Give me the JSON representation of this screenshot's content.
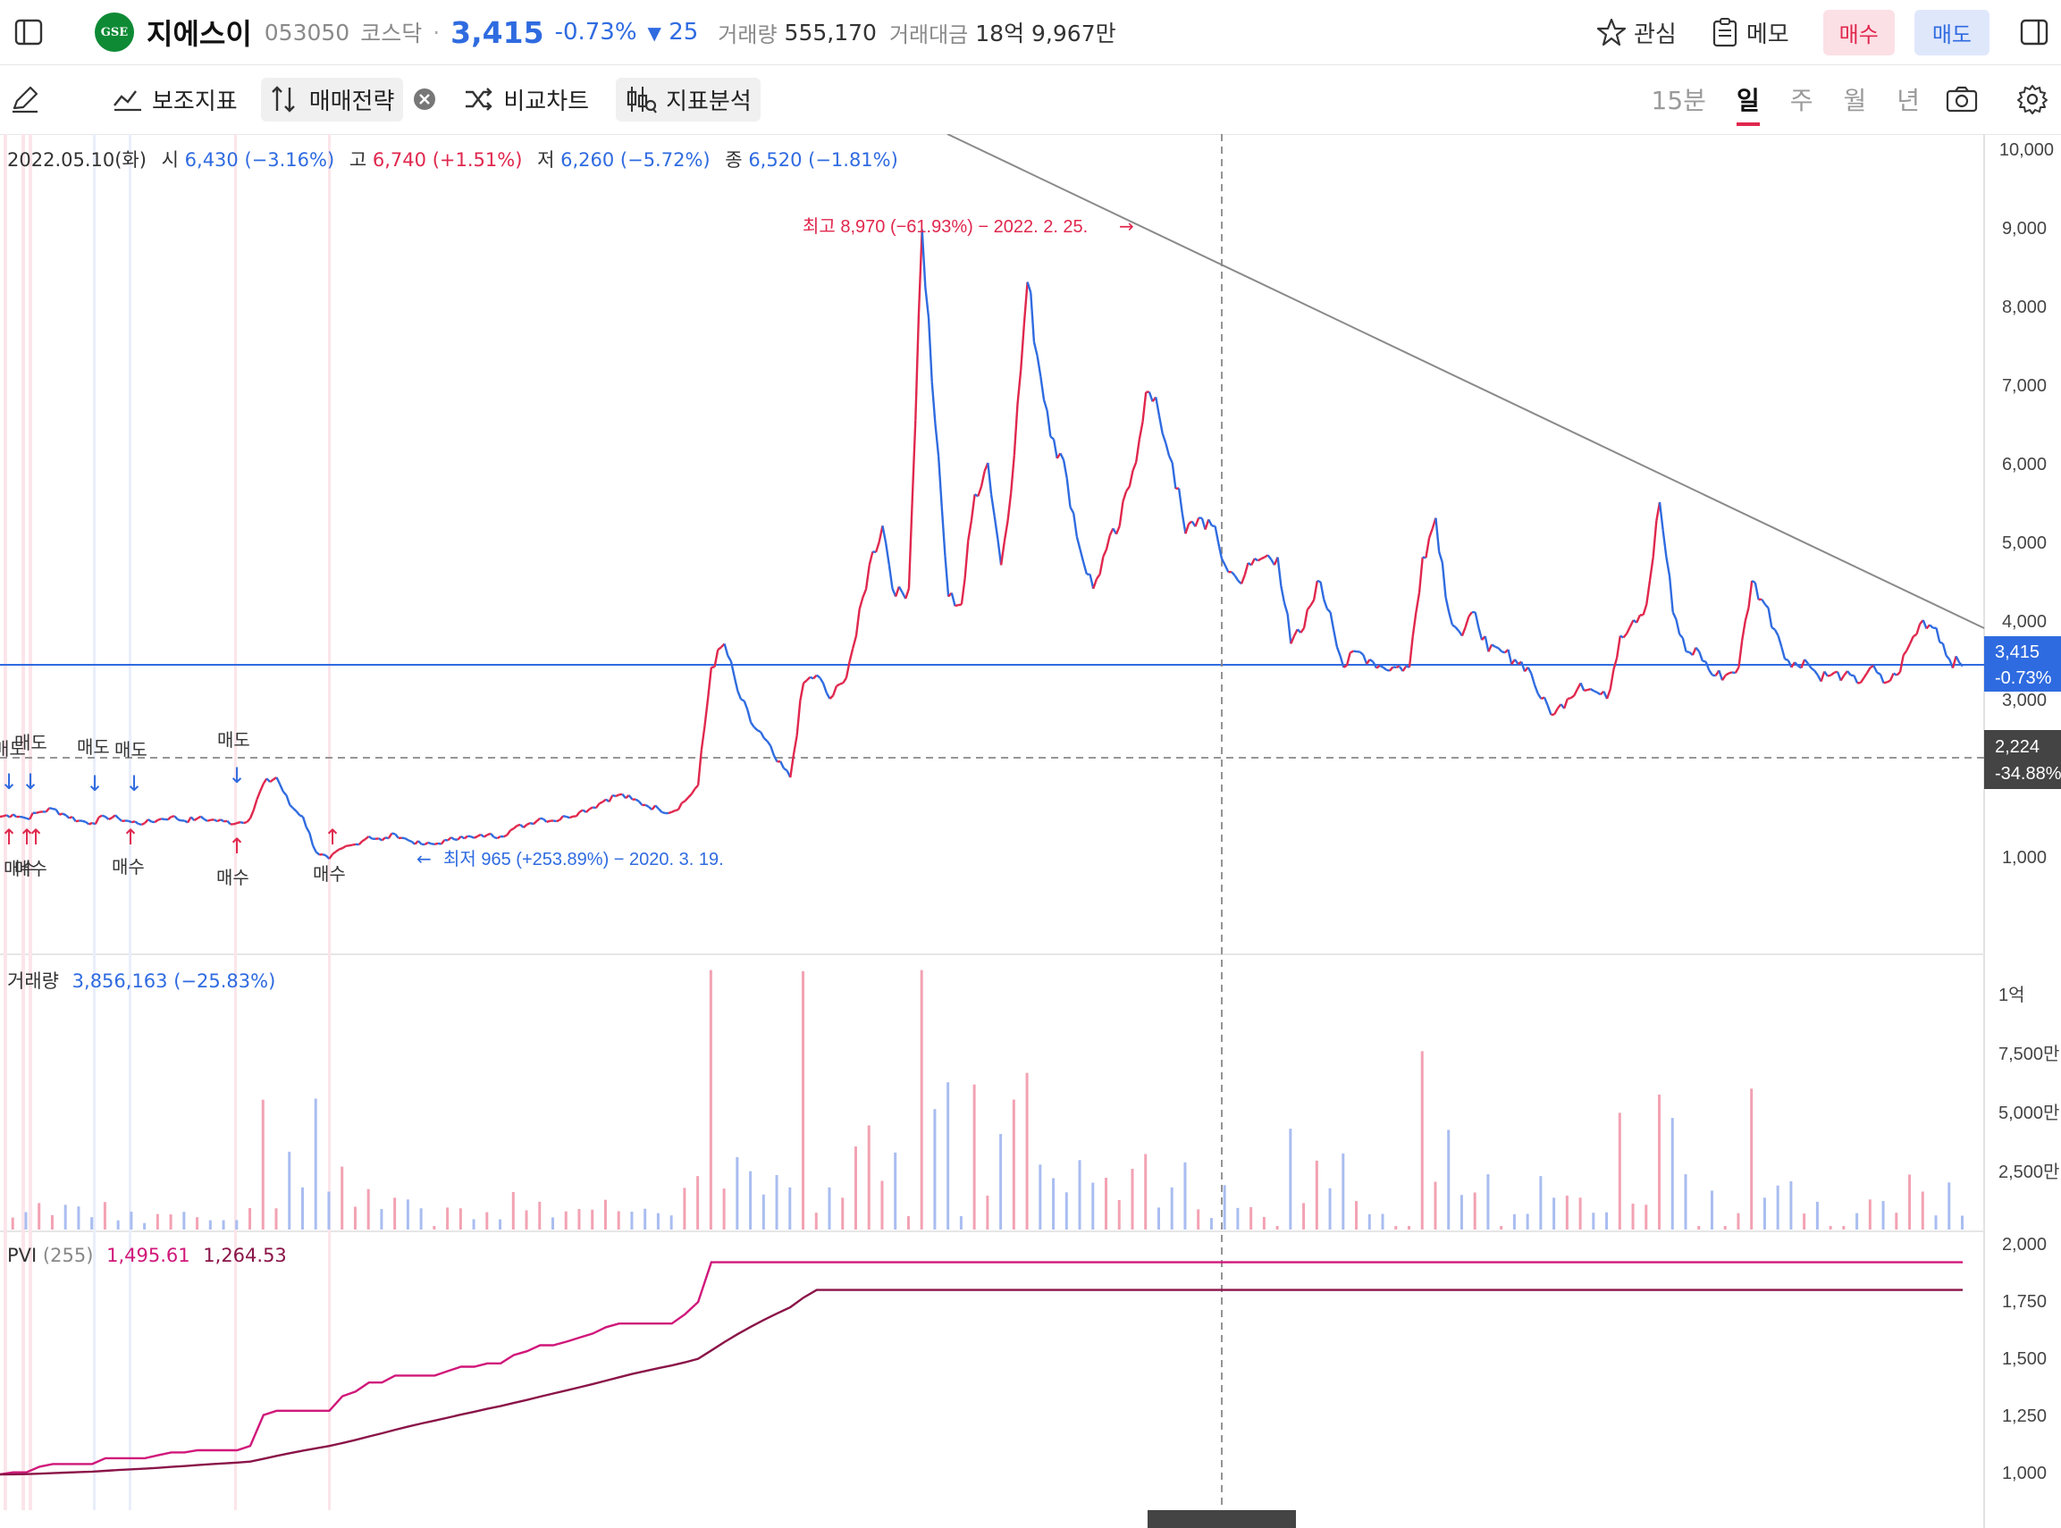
{
  "header": {
    "logo_text": "GSE",
    "stock_name": "지에스이",
    "code": "053050",
    "market": "코스닥",
    "separator": "·",
    "price": "3,415",
    "change_pct": "-0.73%",
    "change_arrow": "▼",
    "change_amt": "25",
    "volume_label": "거래량",
    "volume_value": "555,170",
    "amount_label": "거래대금",
    "amount_value": "18억 9,967만",
    "watch_label": "관심",
    "memo_label": "메모",
    "buy_label": "매수",
    "sell_label": "매도"
  },
  "toolbar": {
    "indicator_label": "보조지표",
    "strategy_label": "매매전략",
    "compare_label": "비교차트",
    "analysis_label": "지표분석",
    "periods": [
      "15분",
      "일",
      "주",
      "월",
      "년"
    ],
    "active_period": "일"
  },
  "ohlc": {
    "date": "2022.05.10(화)",
    "open_label": "시",
    "open": "6,430",
    "open_pct": "(−3.16%)",
    "high_label": "고",
    "high": "6,740",
    "high_pct": "(+1.51%)",
    "low_label": "저",
    "low": "6,260",
    "low_pct": "(−5.72%)",
    "close_label": "종",
    "close": "6,520",
    "close_pct": "(−1.81%)"
  },
  "price_axis": {
    "ticks": [
      "10,000",
      "9,000",
      "8,000",
      "7,000",
      "6,000",
      "5,000",
      "4,000",
      "3,000",
      "1,000"
    ],
    "current_price": "3,415",
    "current_pct": "-0.73%",
    "crosshair_price": "2,224",
    "crosshair_pct": "-34.88%"
  },
  "annotations": {
    "high_note": "최고 8,970 (−61.93%) − 2022. 2. 25.",
    "low_note": "최저 965 (+253.89%) − 2020. 3. 19.",
    "sell": "매도",
    "buy": "매수"
  },
  "volume_panel": {
    "label": "거래량",
    "value": "3,856,163 (−25.83%)",
    "ticks": [
      "1억",
      "7,500만",
      "5,000만",
      "2,500만"
    ]
  },
  "pvi_panel": {
    "label": "PVI",
    "period": "(255)",
    "value1": "1,495.61",
    "value2": "1,264.53",
    "ticks": [
      "2,000",
      "1,750",
      "1,500",
      "1,250",
      "1,000"
    ]
  },
  "colors": {
    "up": "#e0274d",
    "down": "#2f6be0",
    "pvi": "#d0177a",
    "pvi_signal": "#8a1448",
    "current_line": "#2f6be0"
  },
  "chart_data": {
    "type": "line",
    "series": [
      {
        "name": "지에스이",
        "values": [
          1500,
          1530,
          1480,
          1560,
          1600,
          1520,
          1450,
          1420,
          1500,
          1480,
          1430,
          1420,
          1460,
          1500,
          1450,
          1480,
          1460,
          1440,
          1420,
          1480,
          1920,
          2000,
          1650,
          1500,
          1050,
          965,
          1100,
          1150,
          1250,
          1200,
          1280,
          1200,
          1150,
          1150,
          1200,
          1250,
          1230,
          1270,
          1250,
          1350,
          1400,
          1480,
          1450,
          1500,
          1560,
          1620,
          1720,
          1780,
          1720,
          1650,
          1600,
          1560,
          1700,
          1900,
          3400,
          3700,
          3100,
          2700,
          2500,
          2200,
          2000,
          3200,
          3300,
          3000,
          3200,
          3800,
          4700,
          5200,
          4300,
          4400,
          8970,
          6500,
          4300,
          4200,
          5600,
          6000,
          4700,
          6100,
          8300,
          7100,
          6300,
          5800,
          4900,
          4400,
          4900,
          5200,
          5900,
          6900,
          6600,
          6000,
          5100,
          5300,
          5200,
          4700,
          4500,
          4700,
          4800,
          4800,
          3700,
          3900,
          4500,
          4100,
          3400,
          3600,
          3500,
          3400,
          3400,
          3400,
          4800,
          5300,
          4100,
          3800,
          4100,
          3600,
          3600,
          3500,
          3400,
          3000,
          2800,
          3000,
          3200,
          3100,
          3000,
          3800,
          4000,
          4200,
          5500,
          4100,
          3600,
          3600,
          3300,
          3300,
          3400,
          4500,
          4200,
          3800,
          3400,
          3500,
          3300,
          3300,
          3300,
          3200,
          3400,
          3200,
          3300,
          3700,
          4000,
          3900,
          3500,
          3415
        ]
      }
    ],
    "ylim": [
      0,
      10000
    ],
    "ytick_labels": [
      "1,000",
      "3,000",
      "4,000",
      "5,000",
      "6,000",
      "7,000",
      "8,000",
      "9,000",
      "10,000"
    ],
    "volume_ylim": [
      0,
      120000000
    ],
    "pvi_ylim": [
      900,
      2050
    ],
    "grid": false
  }
}
